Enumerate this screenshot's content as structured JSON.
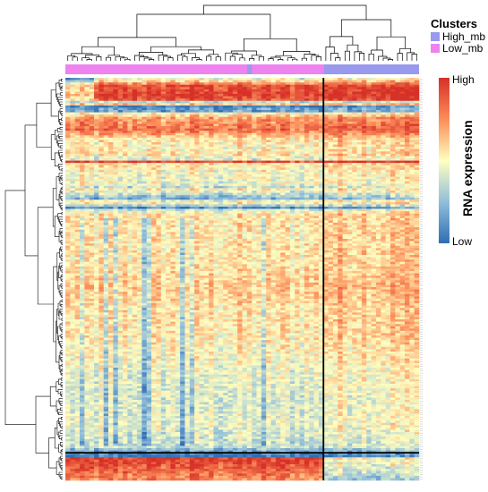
{
  "chart_data": {
    "type": "heatmap",
    "title": "",
    "n_columns": 74,
    "n_rows": 175,
    "column_clusters": [
      {
        "name": "Low_mb",
        "color": "#ee82ee",
        "columns": 54
      },
      {
        "name": "High_mb",
        "color": "#9999ee",
        "columns": 20
      }
    ],
    "minority_cluster_column": {
      "index": 38,
      "cluster": "High_mb"
    },
    "row_split_after": 163,
    "legend": {
      "title": "Clusters",
      "items": [
        {
          "label": "High_mb",
          "color": "#9999ee"
        },
        {
          "label": "Low_mb",
          "color": "#ee82ee"
        }
      ],
      "placement": "top-right"
    },
    "colorbar": {
      "title": "RNA expression",
      "high_label": "High",
      "low_label": "Low",
      "colors": [
        "#2f6eb3",
        "#8fbfdc",
        "#ffffc0",
        "#fdbe6f",
        "#d73027"
      ]
    },
    "row_profile": [
      [
        0,
        0.45
      ],
      [
        3,
        0.9
      ],
      [
        7,
        0.95
      ],
      [
        9,
        0.9
      ],
      [
        10,
        0.35
      ],
      [
        11,
        0.6
      ],
      [
        12,
        0.05
      ],
      [
        13,
        0.15
      ],
      [
        14,
        0.15
      ],
      [
        15,
        0.5
      ],
      [
        17,
        0.7
      ],
      [
        22,
        0.82
      ],
      [
        26,
        0.55
      ],
      [
        30,
        0.5
      ],
      [
        33,
        0.55
      ],
      [
        34,
        0.45
      ],
      [
        35,
        0.42
      ],
      [
        36,
        0.9
      ],
      [
        37,
        0.55
      ],
      [
        41,
        0.48
      ],
      [
        46,
        0.45
      ],
      [
        47,
        0.35
      ],
      [
        48,
        0.52
      ],
      [
        52,
        0.2
      ],
      [
        53,
        0.45
      ],
      [
        54,
        0.52
      ],
      [
        55,
        0.3
      ],
      [
        56,
        0.1
      ],
      [
        57,
        0.42
      ],
      [
        59,
        0.55
      ],
      [
        70,
        0.55
      ],
      [
        80,
        0.55
      ],
      [
        90,
        0.62
      ],
      [
        100,
        0.55
      ],
      [
        110,
        0.55
      ],
      [
        120,
        0.5
      ],
      [
        130,
        0.45
      ],
      [
        140,
        0.42
      ],
      [
        150,
        0.45
      ],
      [
        155,
        0.4
      ],
      [
        160,
        0.35
      ],
      [
        162,
        0.15
      ],
      [
        163,
        0.05
      ],
      [
        164,
        0.02
      ],
      [
        165,
        0.95
      ],
      [
        168,
        0.9
      ],
      [
        172,
        0.8
      ],
      [
        174,
        0.75
      ]
    ]
  }
}
